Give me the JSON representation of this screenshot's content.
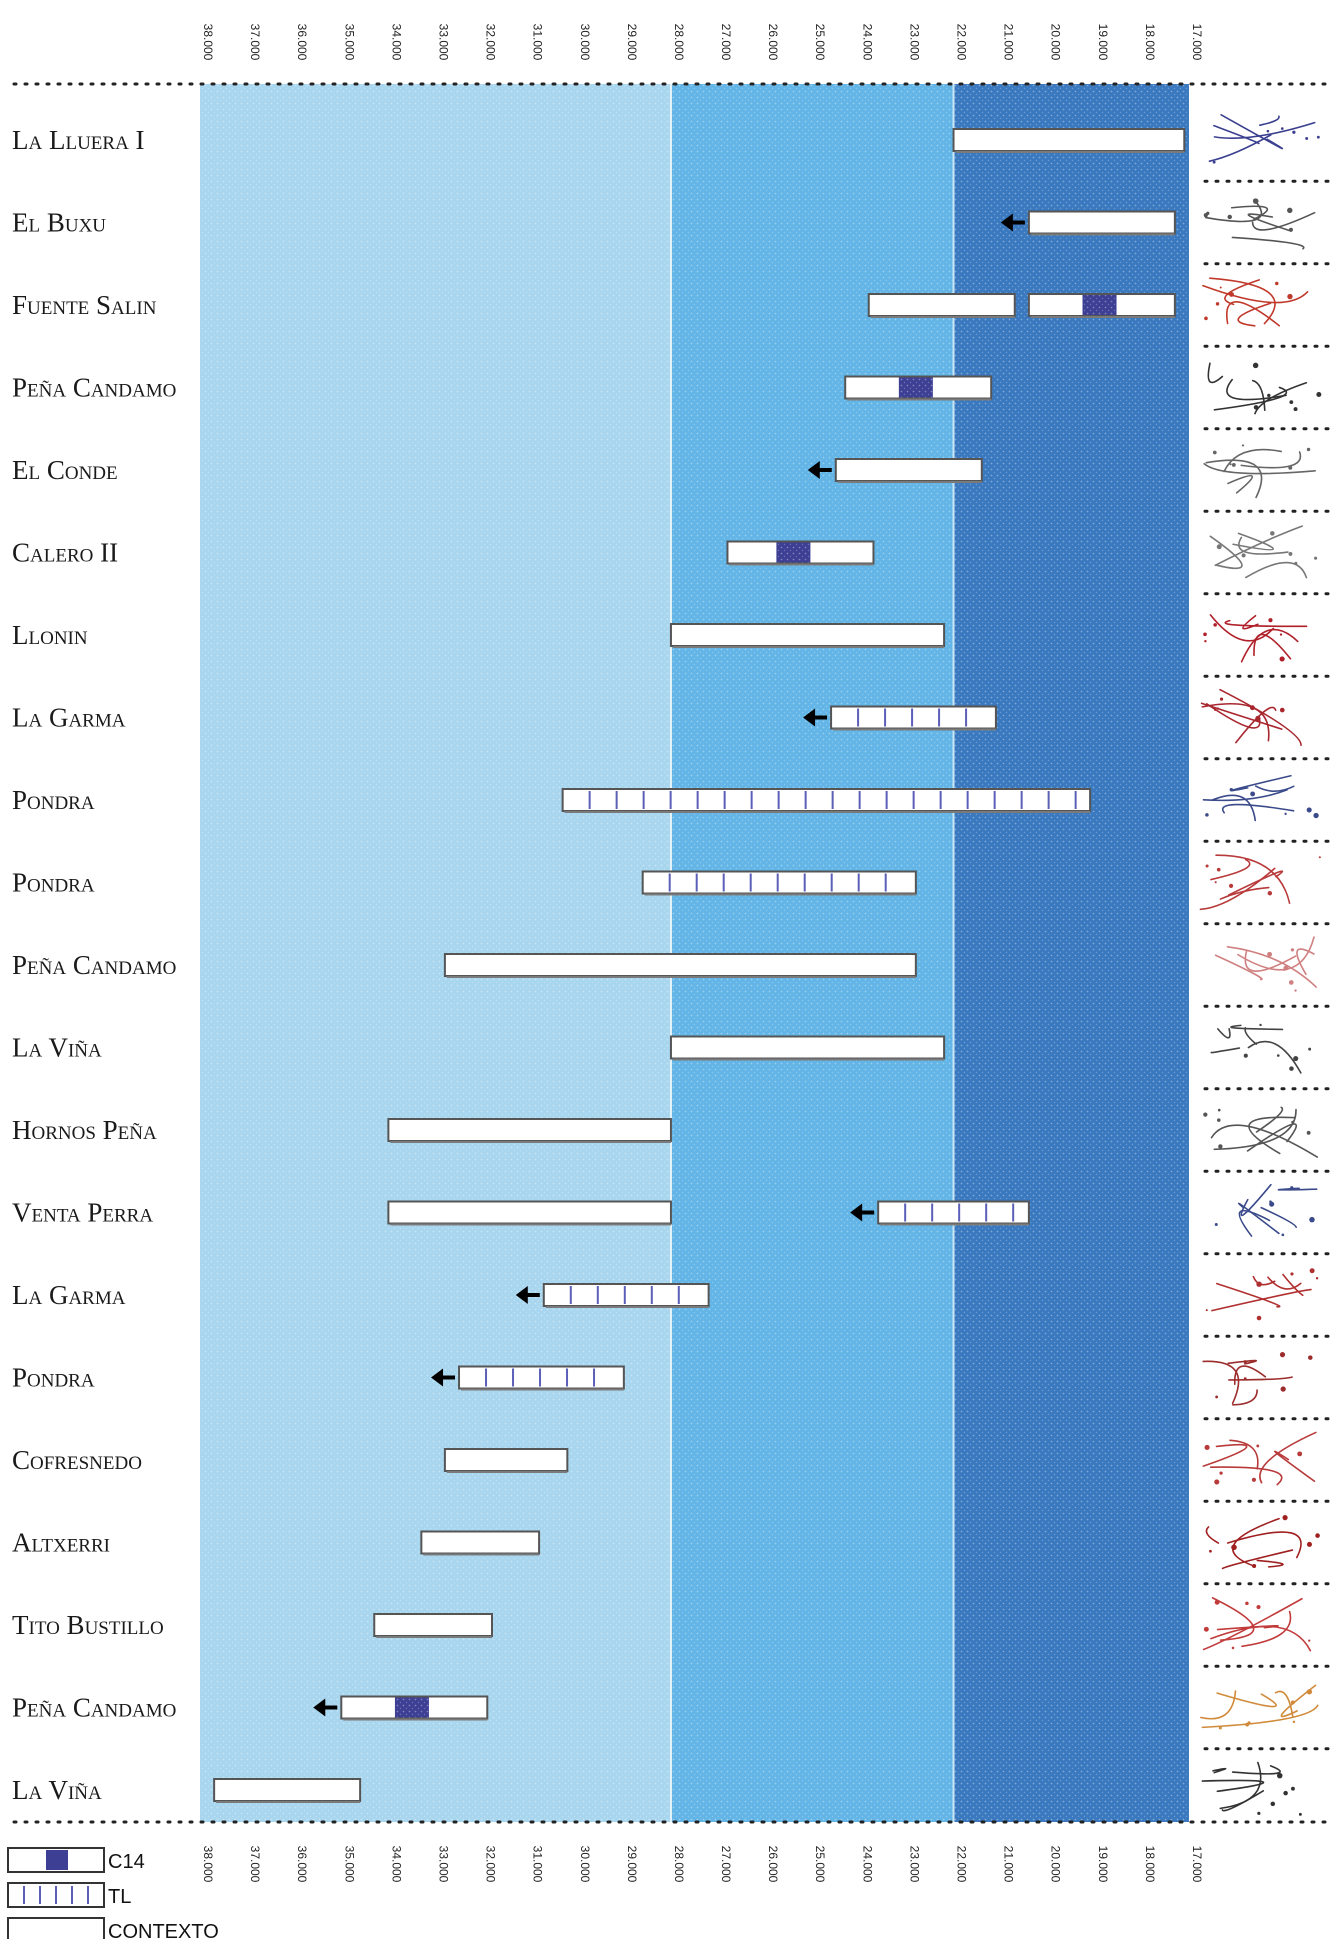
{
  "chart_data": {
    "type": "range-bar",
    "title": "",
    "xlabel": "",
    "ylabel": "",
    "x_axis": {
      "reversed": true,
      "xlim": [
        38000,
        17000
      ],
      "ticks": [
        38000,
        37000,
        36000,
        35000,
        34000,
        33000,
        32000,
        31000,
        30000,
        29000,
        28000,
        27000,
        26000,
        25000,
        24000,
        23000,
        22000,
        21000,
        20000,
        19000,
        18000,
        17000
      ],
      "tick_labels": [
        "38.000",
        "37.000",
        "36.000",
        "35.000",
        "34.000",
        "33.000",
        "32.000",
        "31.000",
        "30.000",
        "29.000",
        "28.000",
        "27.000",
        "26.000",
        "25.000",
        "24.000",
        "23.000",
        "22.000",
        "21.000",
        "20.000",
        "19.000",
        "18.000",
        "17.000"
      ]
    },
    "bands": [
      {
        "from": 38000,
        "to": 28000,
        "color": "#a9d6ef"
      },
      {
        "from": 28000,
        "to": 22000,
        "color": "#62b5e6"
      },
      {
        "from": 22000,
        "to": 17000,
        "color": "#3a79bf"
      }
    ],
    "rows": [
      {
        "site": "La Lluera I",
        "ranges": [
          {
            "start": 22000,
            "end": 17100,
            "method": "contexto"
          }
        ]
      },
      {
        "site": "El Buxu",
        "ranges": [
          {
            "start": 20400,
            "end": 17300,
            "method": "contexto",
            "arrow_older": true
          }
        ]
      },
      {
        "site": "Fuente Salin",
        "ranges": [
          {
            "start": 23800,
            "end": 20700,
            "method": "contexto"
          },
          {
            "start": 20400,
            "end": 17300,
            "method": "c14",
            "c14_mark": 18900
          }
        ]
      },
      {
        "site": "Peña Candamo",
        "ranges": [
          {
            "start": 24300,
            "end": 21200,
            "method": "c14",
            "c14_mark": 22800
          }
        ]
      },
      {
        "site": "El Conde",
        "ranges": [
          {
            "start": 24500,
            "end": 21400,
            "method": "contexto",
            "arrow_older": true
          }
        ]
      },
      {
        "site": "Calero II",
        "ranges": [
          {
            "start": 26800,
            "end": 23700,
            "method": "c14",
            "c14_mark": 25400
          }
        ]
      },
      {
        "site": "Llonin",
        "ranges": [
          {
            "start": 28000,
            "end": 22200,
            "method": "contexto"
          }
        ]
      },
      {
        "site": "La Garma",
        "ranges": [
          {
            "start": 24600,
            "end": 21100,
            "method": "tl",
            "arrow_older": true
          }
        ]
      },
      {
        "site": "Pondra",
        "ranges": [
          {
            "start": 30300,
            "end": 19100,
            "method": "tl"
          }
        ]
      },
      {
        "site": "Pondra",
        "ranges": [
          {
            "start": 28600,
            "end": 22800,
            "method": "tl"
          }
        ]
      },
      {
        "site": "Peña Candamo",
        "ranges": [
          {
            "start": 32800,
            "end": 22800,
            "method": "contexto"
          }
        ]
      },
      {
        "site": "La Viña",
        "ranges": [
          {
            "start": 28000,
            "end": 22200,
            "method": "contexto"
          }
        ]
      },
      {
        "site": "Hornos Peña",
        "ranges": [
          {
            "start": 34000,
            "end": 28000,
            "method": "contexto"
          }
        ]
      },
      {
        "site": "Venta Perra",
        "ranges": [
          {
            "start": 34000,
            "end": 28000,
            "method": "contexto"
          },
          {
            "start": 23600,
            "end": 20400,
            "method": "tl",
            "arrow_older": true
          }
        ]
      },
      {
        "site": "La Garma",
        "ranges": [
          {
            "start": 30700,
            "end": 27200,
            "method": "tl",
            "arrow_older": true
          }
        ]
      },
      {
        "site": "Pondra",
        "ranges": [
          {
            "start": 32500,
            "end": 29000,
            "method": "tl",
            "arrow_older": true
          }
        ]
      },
      {
        "site": "Cofresnedo",
        "ranges": [
          {
            "start": 32800,
            "end": 30200,
            "method": "contexto"
          }
        ]
      },
      {
        "site": "Altxerri",
        "ranges": [
          {
            "start": 33300,
            "end": 30800,
            "method": "contexto"
          }
        ]
      },
      {
        "site": "Tito Bustillo",
        "ranges": [
          {
            "start": 34300,
            "end": 31800,
            "method": "contexto"
          }
        ]
      },
      {
        "site": "Peña Candamo",
        "ranges": [
          {
            "start": 35000,
            "end": 31900,
            "method": "c14",
            "c14_mark": 33500,
            "arrow_older": true
          }
        ]
      },
      {
        "site": "La Viña",
        "ranges": [
          {
            "start": 37700,
            "end": 34600,
            "method": "contexto"
          }
        ]
      }
    ],
    "legend": [
      {
        "key": "c14",
        "label": "C14"
      },
      {
        "key": "tl",
        "label": "TL"
      },
      {
        "key": "contexto",
        "label": "CONTEXTO"
      }
    ],
    "thumbnail_column": "rock-art sketches per site"
  }
}
